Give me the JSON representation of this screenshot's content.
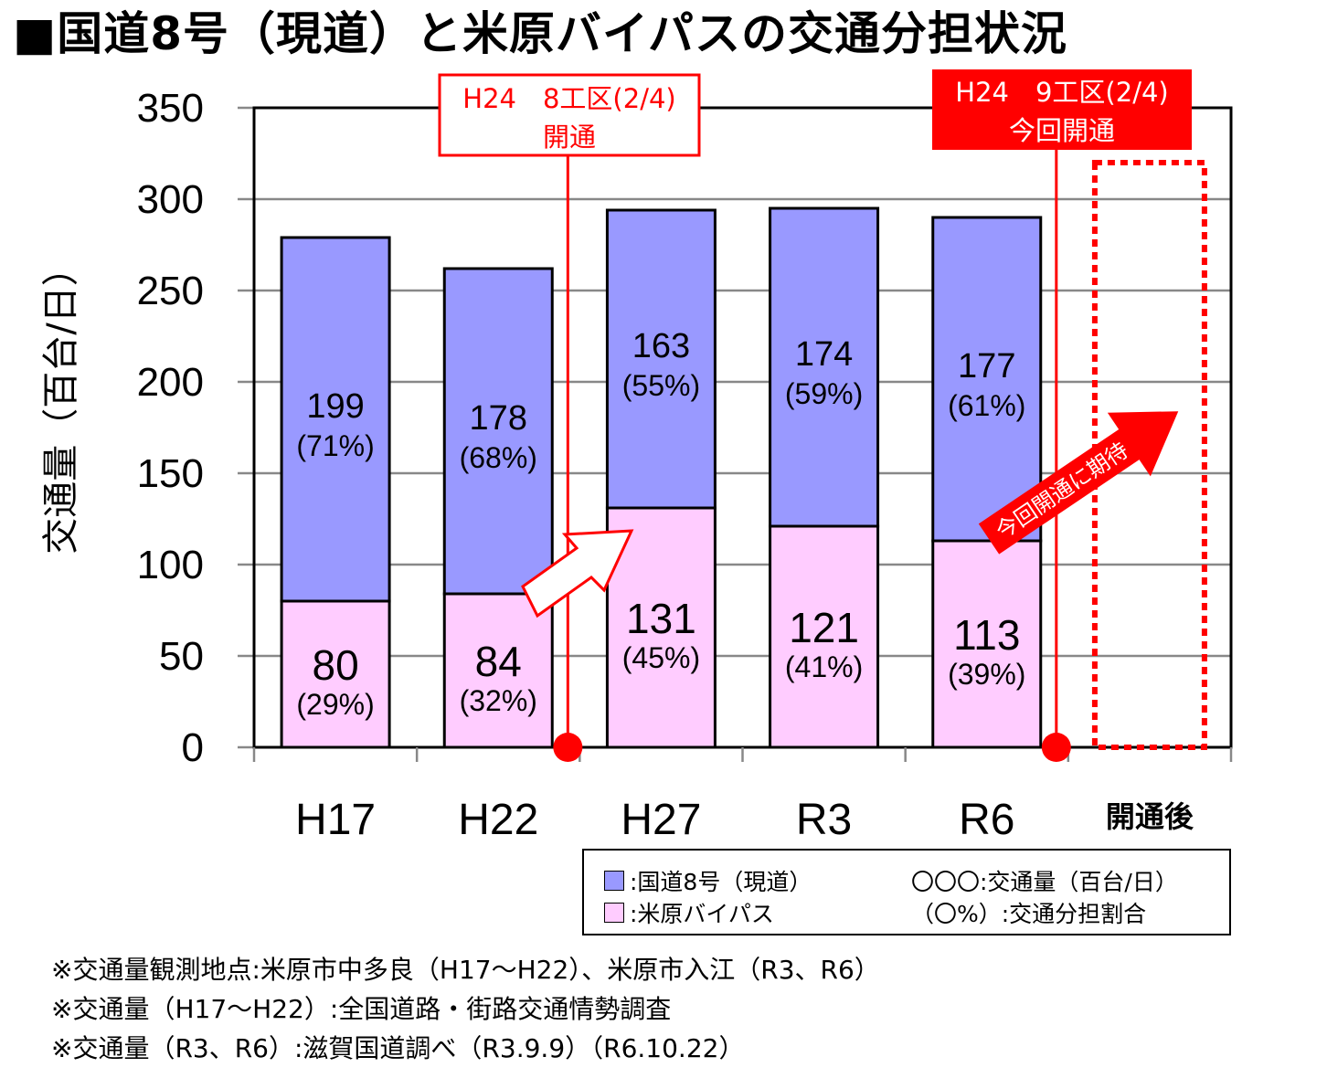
{
  "title": "■国道8号（現道）と米原バイパスの交通分担状況",
  "chart_data": {
    "type": "bar",
    "stacked": true,
    "ylabel": "交通量（百台/日）",
    "ylim": [
      0,
      350
    ],
    "yticks": [
      0,
      50,
      100,
      150,
      200,
      250,
      300,
      350
    ],
    "categories": [
      "H17",
      "H22",
      "H27",
      "R3",
      "R6",
      "開通後"
    ],
    "grid": true,
    "series": [
      {
        "name": "米原バイパス",
        "values": [
          80,
          84,
          131,
          121,
          113,
          null
        ],
        "labels": [
          "80",
          "84",
          "131",
          "121",
          "113",
          ""
        ],
        "shares": [
          "(29%)",
          "(32%)",
          "(45%)",
          "(41%)",
          "(39%)",
          ""
        ],
        "color": "#ffccff"
      },
      {
        "name": "国道8号（現道）",
        "values": [
          199,
          178,
          163,
          174,
          177,
          null
        ],
        "labels": [
          "199",
          "178",
          "163",
          "174",
          "177",
          ""
        ],
        "shares": [
          "(71%)",
          "(68%)",
          "(55%)",
          "(59%)",
          "(61%)",
          ""
        ],
        "color": "#9999ff"
      }
    ],
    "annotations": [
      {
        "text_line1": "H24　8工区(2/4)",
        "text_line2": "開通",
        "style": "outline",
        "after_category_index": 1
      },
      {
        "text_line1": "H24　9工区(2/4)",
        "text_line2": "今回開通",
        "style": "filled",
        "after_category_index": 4
      },
      {
        "text": "今回開通に期待",
        "style": "arrow"
      }
    ]
  },
  "legend": {
    "items": [
      {
        "label": ":国道8号（現道）",
        "color": "#9999ff"
      },
      {
        "label": ":米原バイパス",
        "color": "#ffccff"
      }
    ],
    "notes": [
      "〇〇〇:交通量（百台/日）",
      "（〇%）:交通分担割合"
    ]
  },
  "footnotes": [
    "※交通量観測地点:米原市中多良（H17～H22）、米原市入江（R3、R6）",
    "※交通量（H17～H22）:全国道路・街路交通情勢調査",
    "※交通量（R3、R6）:滋賀国道調べ（R3.9.9）（R6.10.22）"
  ],
  "colors": {
    "accent": "#ff0000",
    "bypass": "#ffccff",
    "current_road": "#9999ff",
    "grid": "#888888"
  }
}
